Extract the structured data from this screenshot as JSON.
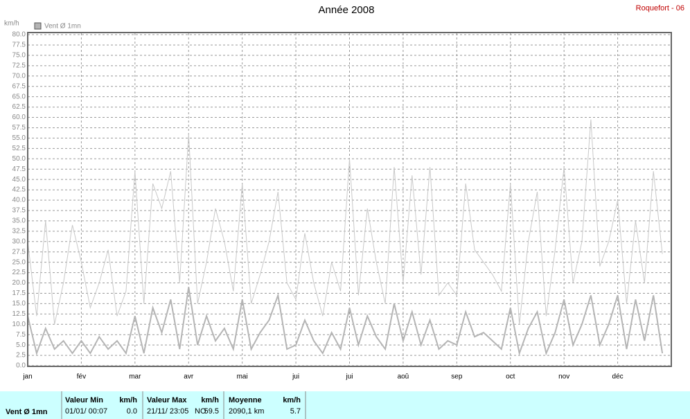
{
  "chart_data": {
    "type": "line",
    "title": "Année 2008",
    "station": "Roquefort - 06",
    "y_label": "km/h",
    "categories": [
      "jan",
      null,
      null,
      null,
      null,
      null,
      "fév",
      null,
      null,
      null,
      null,
      null,
      "mar",
      null,
      null,
      null,
      null,
      null,
      "avr",
      null,
      null,
      null,
      null,
      null,
      "mai",
      null,
      null,
      null,
      null,
      null,
      "jui",
      null,
      null,
      null,
      null,
      null,
      "jui",
      null,
      null,
      null,
      null,
      null,
      "aoû",
      null,
      null,
      null,
      null,
      null,
      "sep",
      null,
      null,
      null,
      null,
      null,
      "oct",
      null,
      null,
      null,
      null,
      null,
      "nov",
      null,
      null,
      null,
      null,
      null,
      "déc",
      null,
      null,
      null,
      null,
      null
    ],
    "series": [
      {
        "name": "Vent Ø 1mn",
        "color": "#c8c8c8",
        "values": [
          30,
          12,
          35,
          10,
          20,
          34,
          25,
          14,
          20,
          28,
          12,
          18,
          47,
          15,
          44,
          38,
          47,
          20,
          56,
          15,
          25,
          38,
          30,
          18,
          44,
          15,
          22,
          30,
          42,
          20,
          16,
          32,
          20,
          12,
          25,
          18,
          50,
          17,
          38,
          25,
          15,
          48,
          20,
          46,
          22,
          48,
          17,
          20,
          17,
          44,
          28,
          25,
          22,
          18,
          44,
          10,
          30,
          42,
          12,
          28,
          48,
          20,
          30,
          59.5,
          24,
          30,
          40,
          15,
          35,
          20,
          47,
          27
        ]
      },
      {
        "color": "#b4b4b4",
        "values": [
          12,
          3,
          9,
          4,
          6,
          3,
          6,
          3,
          7,
          4,
          6,
          3,
          12,
          3,
          14,
          8,
          16,
          4,
          19,
          5,
          12,
          6,
          9,
          4,
          16,
          4,
          8,
          11,
          17,
          4,
          5,
          11,
          6,
          3,
          8,
          4,
          14,
          5,
          12,
          7,
          4,
          15,
          6,
          13,
          5,
          11,
          4,
          6,
          5,
          13,
          7,
          8,
          6,
          4,
          14,
          3,
          9,
          13,
          3,
          8,
          16,
          5,
          10,
          17,
          5,
          10,
          17,
          4,
          16,
          6,
          17,
          3
        ]
      }
    ],
    "ylim": [
      0,
      80
    ],
    "yticks": [
      {
        "value": 0,
        "label": "0.0"
      },
      2.5,
      {
        "value": 5,
        "label": "5.0"
      },
      7.5,
      {
        "value": 10,
        "label": "10.0"
      },
      12.5,
      {
        "value": 15,
        "label": "15.0"
      },
      17.5,
      {
        "value": 20,
        "label": "20.0"
      },
      22.5,
      {
        "value": 25,
        "label": "25.0"
      },
      27.5,
      {
        "value": 30,
        "label": "30.0"
      },
      32.5,
      {
        "value": 35,
        "label": "35.0"
      },
      37.5,
      {
        "value": 40,
        "label": "40.0"
      },
      42.5,
      {
        "value": 45,
        "label": "45.0"
      },
      47.5,
      {
        "value": 50,
        "label": "50.0"
      },
      52.5,
      {
        "value": 55,
        "label": "55.0"
      },
      57.5,
      {
        "value": 60,
        "label": "60.0"
      },
      62.5,
      {
        "value": 65,
        "label": "65.0"
      },
      67.5,
      {
        "value": 70,
        "label": "70.0"
      },
      72.5,
      {
        "value": 75,
        "label": "75.0"
      },
      77.5,
      {
        "value": 80,
        "label": "80.0"
      }
    ],
    "grid": true
  },
  "stats": {
    "name": "Vent Ø 1mn",
    "min": {
      "header": "Valeur Min",
      "unit": "km/h",
      "date": "01/01/ 00:07",
      "value": "0.0"
    },
    "max": {
      "header": "Valeur Max",
      "unit": "km/h",
      "date": "21/11/ 23:05",
      "direction": "NO",
      "value": "59.5"
    },
    "mean": {
      "header": "Moyenne",
      "unit": "km/h",
      "distance": "2090,1 km",
      "value": "5.7"
    }
  }
}
